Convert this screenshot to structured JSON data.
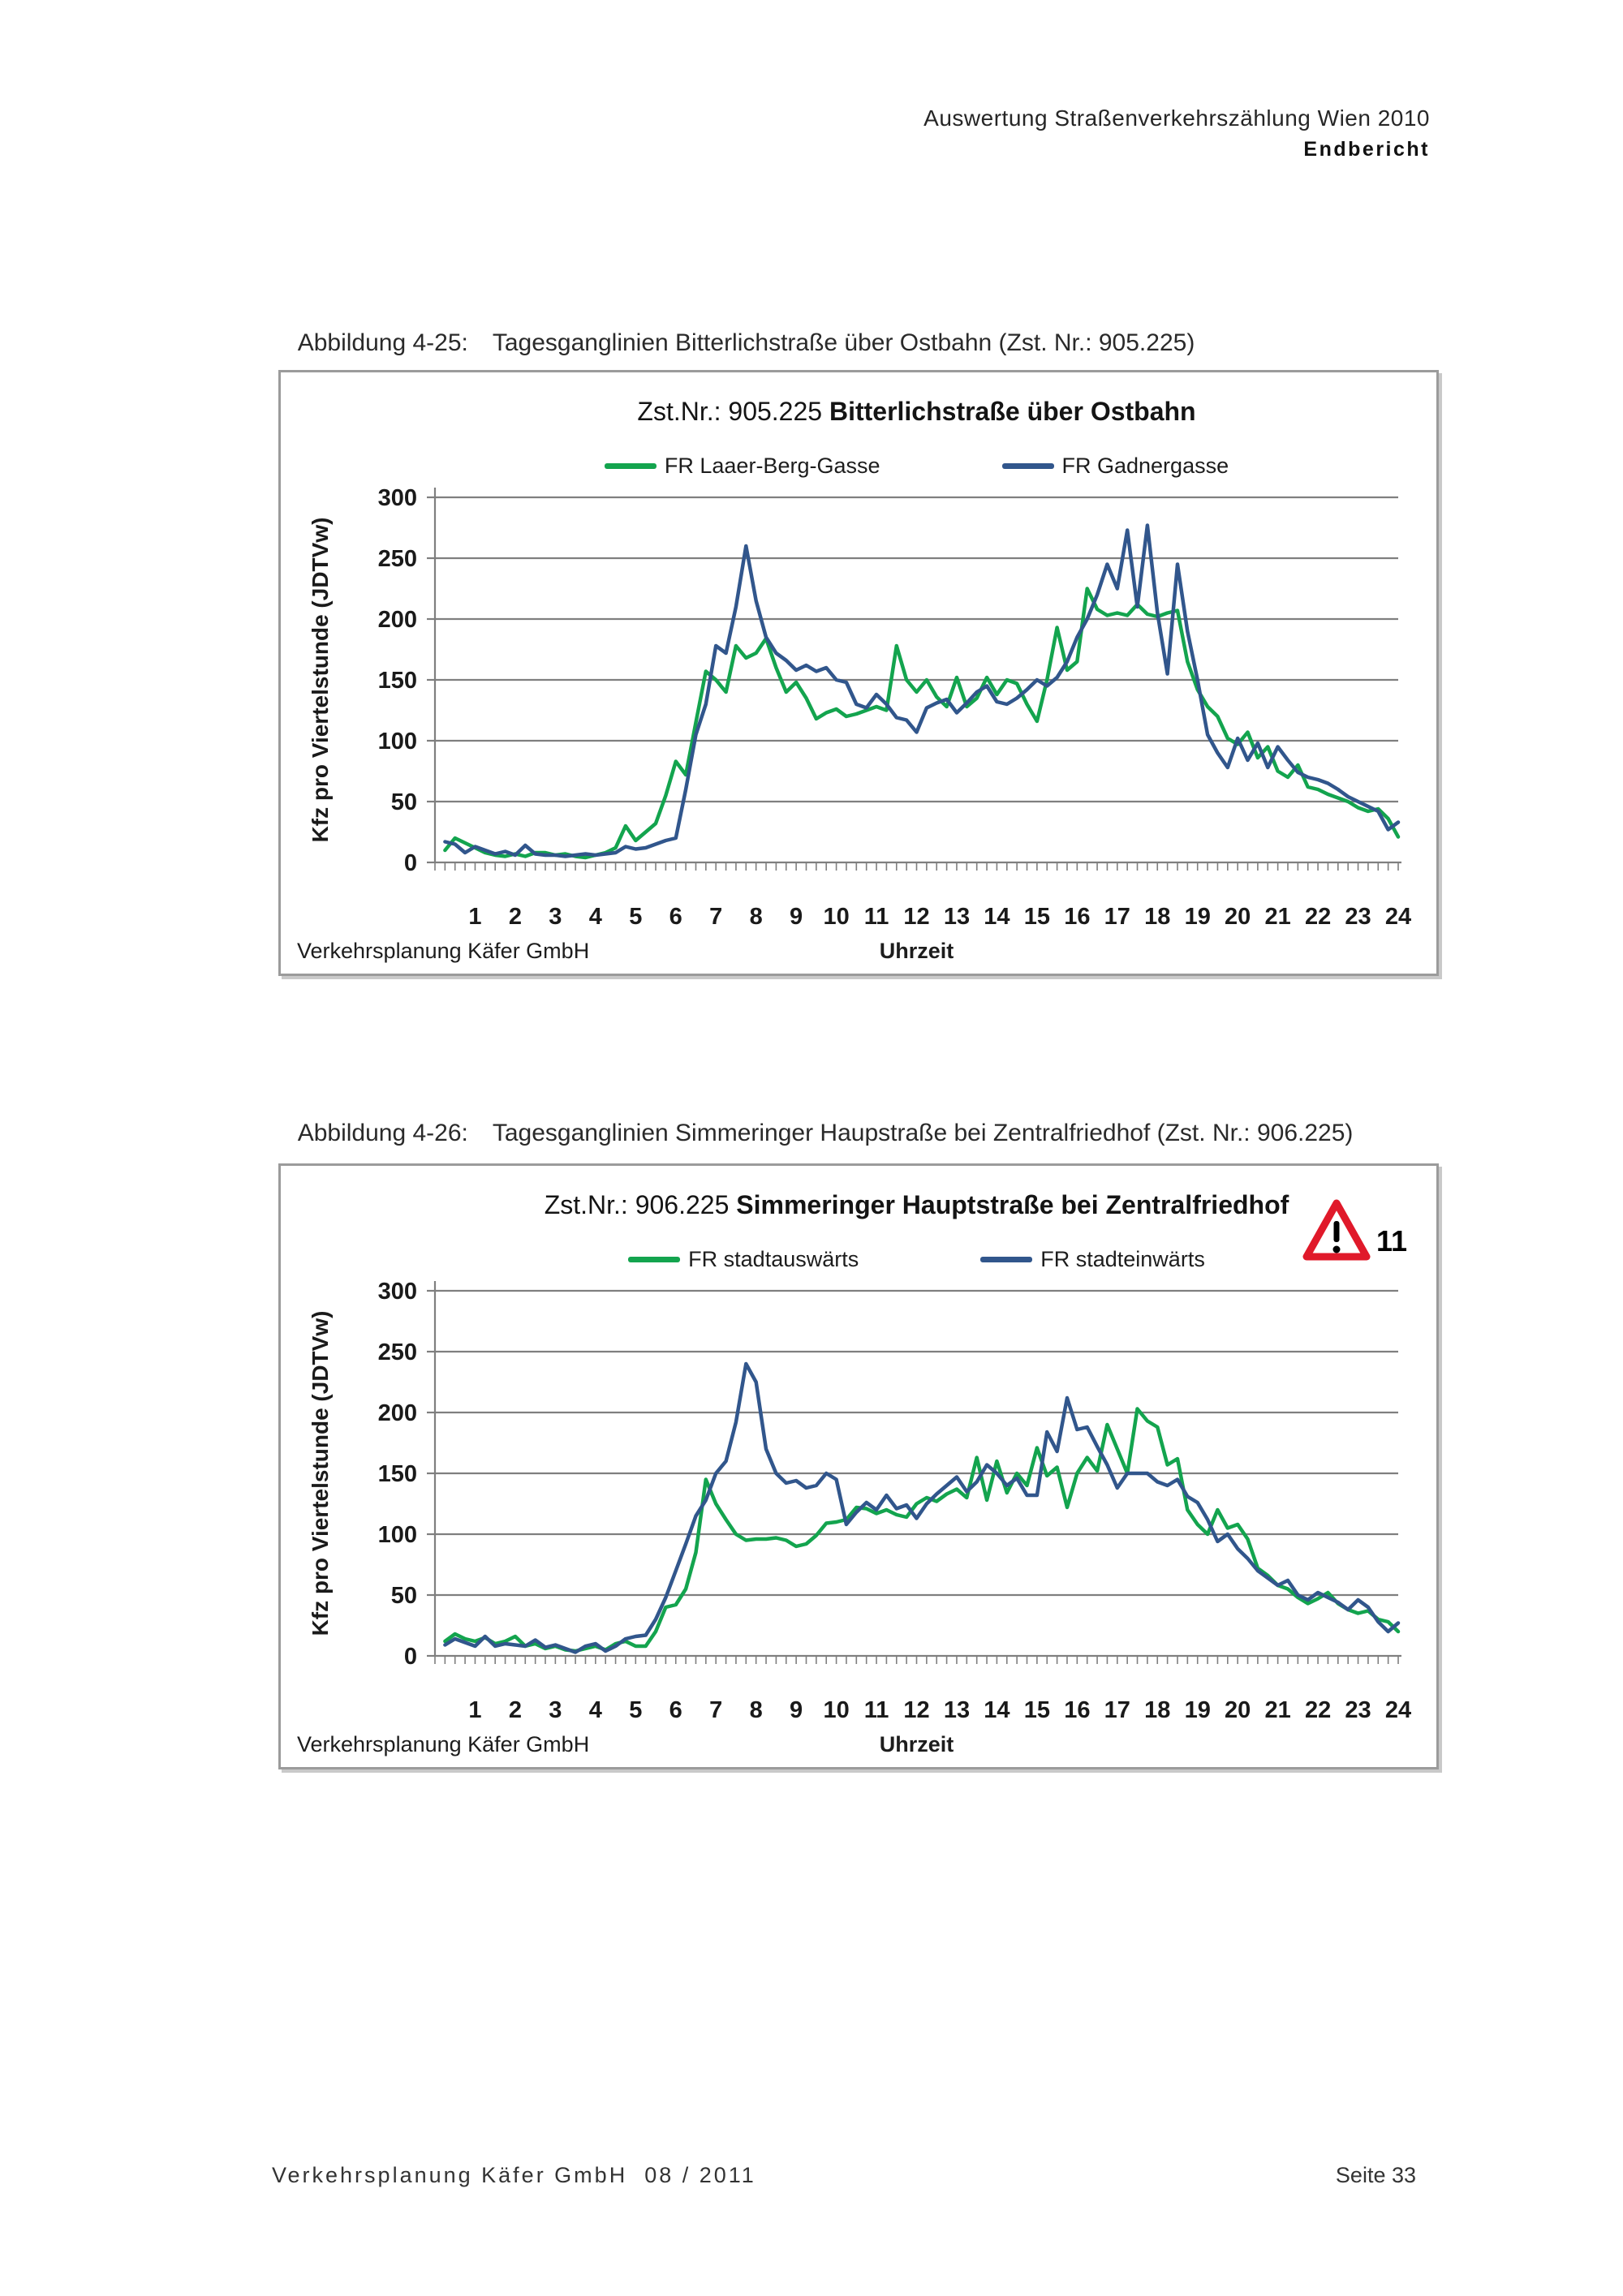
{
  "page": {
    "header_line1": "Auswertung Straßenverkehrszählung Wien 2010",
    "header_line2": "Endbericht",
    "footer_left": "Verkehrsplanung Käfer GmbH  08 / 2011",
    "footer_right": "Seite 33"
  },
  "figures": [
    {
      "caption_label": "Abbildung 4-25:",
      "caption_text": "Tagesganglinien Bitterlichstraße über Ostbahn (Zst. Nr.: 905.225)"
    },
    {
      "caption_label": "Abbildung 4-26:",
      "caption_text": "Tagesganglinien Simmeringer Haupstraße bei Zentralfriedhof (Zst. Nr.: 906.225)"
    }
  ],
  "colors": {
    "green": "#13a44e",
    "blue": "#31568c",
    "grid": "#7f7f7f",
    "axis": "#7f7f7f",
    "warning_red": "#e0192a"
  },
  "chart_data": [
    {
      "type": "line",
      "title_prefix": "Zst.Nr.: 905.225 ",
      "title_bold": "Bitterlichstraße über Ostbahn",
      "ylabel": "Kfz pro Viertelstunde (JDTVw)",
      "xlabel": "Uhrzeit",
      "source_note": "Verkehrsplanung Käfer GmbH",
      "ylim": [
        0,
        300
      ],
      "yticks": [
        0,
        50,
        100,
        150,
        200,
        250,
        300
      ],
      "x_labels": [
        "1",
        "2",
        "3",
        "4",
        "5",
        "6",
        "7",
        "8",
        "9",
        "10",
        "11",
        "12",
        "13",
        "14",
        "15",
        "16",
        "17",
        "18",
        "19",
        "20",
        "21",
        "22",
        "23",
        "24"
      ],
      "x_resolution": "quarter-hour (96 points)",
      "grid": true,
      "legend_position": "top",
      "series": [
        {
          "name": "FR Laaer-Berg-Gasse",
          "color": "#13a44e",
          "values": [
            10,
            20,
            16,
            12,
            8,
            6,
            5,
            7,
            5,
            8,
            8,
            6,
            7,
            5,
            4,
            6,
            8,
            12,
            30,
            18,
            25,
            32,
            55,
            83,
            72,
            115,
            157,
            150,
            140,
            178,
            168,
            172,
            184,
            160,
            140,
            148,
            135,
            118,
            123,
            126,
            120,
            122,
            125,
            128,
            125,
            178,
            150,
            140,
            150,
            136,
            128,
            152,
            128,
            135,
            152,
            138,
            150,
            147,
            130,
            116,
            150,
            193,
            158,
            165,
            225,
            208,
            203,
            205,
            203,
            212,
            204,
            202,
            205,
            207,
            165,
            142,
            128,
            120,
            102,
            97,
            107,
            86,
            95,
            75,
            70,
            80,
            62,
            60,
            56,
            53,
            50,
            45,
            42,
            44,
            36,
            21
          ]
        },
        {
          "name": "FR Gadnergasse",
          "color": "#31568c",
          "values": [
            17,
            15,
            8,
            13,
            10,
            7,
            9,
            6,
            14,
            7,
            6,
            6,
            5,
            6,
            7,
            6,
            7,
            8,
            13,
            11,
            12,
            15,
            18,
            20,
            60,
            105,
            130,
            178,
            172,
            210,
            260,
            215,
            185,
            172,
            166,
            158,
            162,
            157,
            160,
            150,
            148,
            130,
            127,
            138,
            130,
            119,
            117,
            107,
            127,
            131,
            134,
            123,
            131,
            140,
            145,
            132,
            130,
            135,
            142,
            150,
            145,
            152,
            165,
            185,
            200,
            220,
            245,
            225,
            273,
            210,
            277,
            205,
            155,
            245,
            190,
            150,
            105,
            90,
            78,
            102,
            84,
            98,
            78,
            95,
            84,
            74,
            70,
            68,
            65,
            60,
            54,
            50,
            46,
            42,
            27,
            33
          ]
        }
      ]
    },
    {
      "type": "line",
      "title_prefix": "Zst.Nr.: 906.225 ",
      "title_bold": "Simmeringer Hauptstraße bei Zentralfriedhof",
      "ylabel": "Kfz pro Viertelstunde (JDTVw)",
      "xlabel": "Uhrzeit",
      "source_note": "Verkehrsplanung Käfer GmbH",
      "ylim": [
        0,
        300
      ],
      "yticks": [
        0,
        50,
        100,
        150,
        200,
        250,
        300
      ],
      "x_labels": [
        "1",
        "2",
        "3",
        "4",
        "5",
        "6",
        "7",
        "8",
        "9",
        "10",
        "11",
        "12",
        "13",
        "14",
        "15",
        "16",
        "17",
        "18",
        "19",
        "20",
        "21",
        "22",
        "23",
        "24"
      ],
      "x_resolution": "quarter-hour (96 points)",
      "grid": true,
      "legend_position": "top",
      "annotation": {
        "icon": "warning-triangle",
        "label": "11"
      },
      "series": [
        {
          "name": "FR stadtauswärts",
          "color": "#13a44e",
          "values": [
            12,
            18,
            14,
            12,
            15,
            10,
            12,
            16,
            8,
            10,
            6,
            8,
            5,
            4,
            6,
            8,
            5,
            10,
            12,
            8,
            8,
            20,
            40,
            42,
            55,
            85,
            145,
            125,
            112,
            100,
            95,
            96,
            96,
            97,
            95,
            90,
            92,
            99,
            109,
            110,
            112,
            122,
            121,
            117,
            120,
            116,
            114,
            125,
            130,
            127,
            133,
            137,
            130,
            163,
            128,
            160,
            134,
            150,
            140,
            171,
            148,
            155,
            122,
            150,
            163,
            152,
            190,
            170,
            150,
            203,
            193,
            188,
            157,
            162,
            120,
            108,
            100,
            120,
            105,
            108,
            96,
            72,
            66,
            58,
            55,
            48,
            43,
            47,
            52,
            43,
            38,
            35,
            37,
            30,
            28,
            20
          ]
        },
        {
          "name": "FR stadteinwärts",
          "color": "#31568c",
          "values": [
            9,
            14,
            11,
            8,
            16,
            8,
            10,
            9,
            8,
            13,
            7,
            9,
            6,
            3,
            8,
            10,
            4,
            8,
            14,
            16,
            17,
            30,
            48,
            70,
            92,
            115,
            128,
            150,
            160,
            192,
            240,
            225,
            170,
            150,
            142,
            144,
            138,
            140,
            150,
            145,
            108,
            118,
            126,
            120,
            132,
            121,
            124,
            113,
            125,
            133,
            140,
            147,
            135,
            143,
            157,
            150,
            140,
            146,
            132,
            132,
            184,
            168,
            212,
            186,
            188,
            172,
            157,
            138,
            150,
            150,
            150,
            143,
            140,
            145,
            131,
            126,
            112,
            94,
            100,
            88,
            80,
            70,
            64,
            58,
            62,
            50,
            46,
            52,
            48,
            44,
            38,
            46,
            40,
            28,
            20,
            27
          ]
        }
      ]
    }
  ]
}
